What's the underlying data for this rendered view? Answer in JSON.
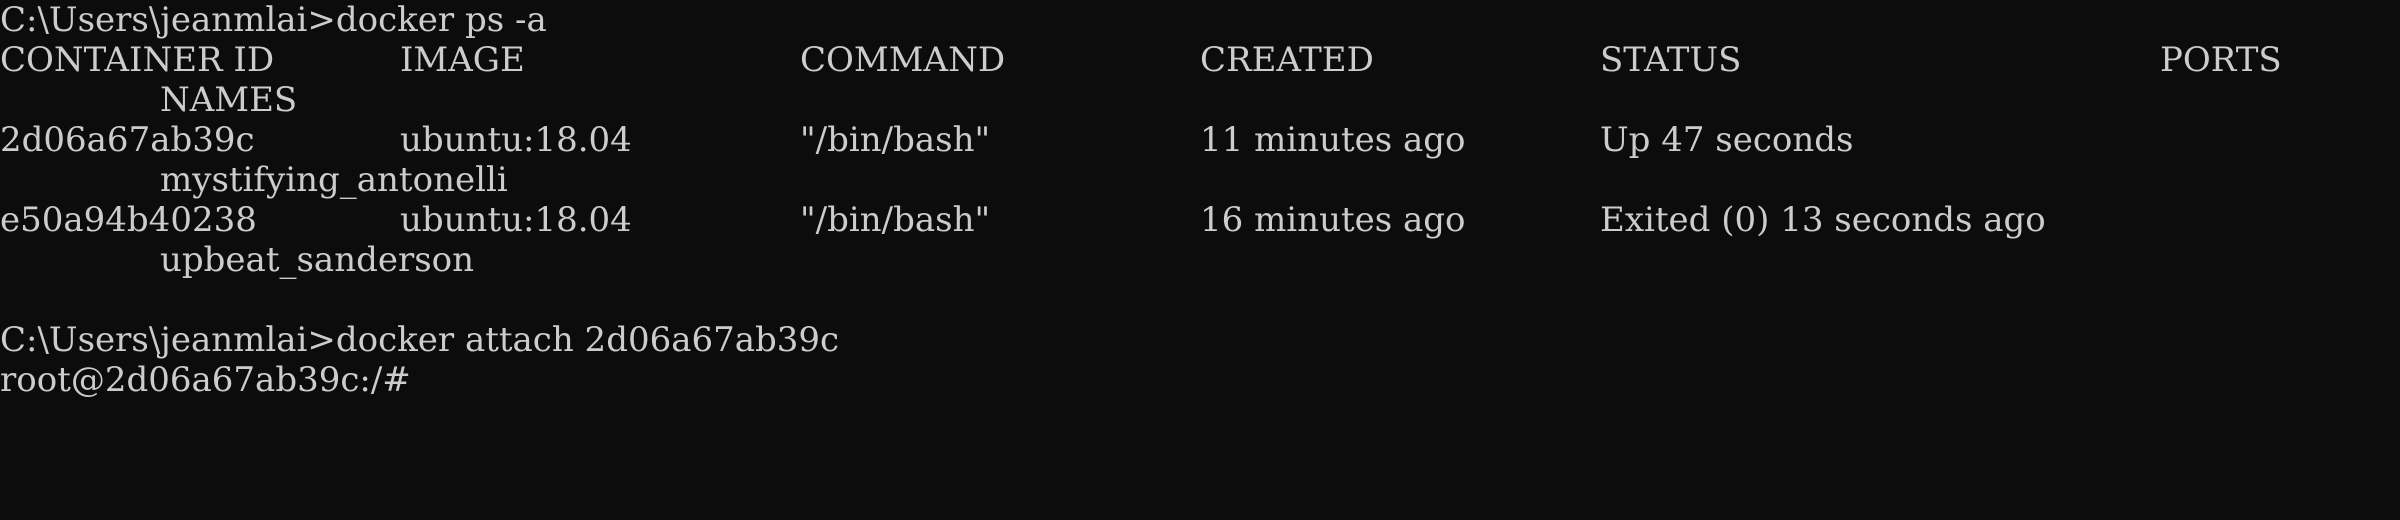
{
  "terminal": {
    "prompt1": "C:\\Users\\jeanmlai>docker ps -a",
    "headers": {
      "container_id": "CONTAINER ID",
      "image": "IMAGE",
      "command": "COMMAND",
      "created": "CREATED",
      "status": "STATUS",
      "ports": "PORTS",
      "names": "NAMES"
    },
    "rows": [
      {
        "container_id": "2d06a67ab39c",
        "image": "ubuntu:18.04",
        "command": "\"/bin/bash\"",
        "created": "11 minutes ago",
        "status": "Up 47 seconds",
        "ports": "",
        "names": "mystifying_antonelli"
      },
      {
        "container_id": "e50a94b40238",
        "image": "ubuntu:18.04",
        "command": "\"/bin/bash\"",
        "created": "16 minutes ago",
        "status": "Exited (0) 13 seconds ago",
        "ports": "",
        "names": "upbeat_sanderson"
      }
    ],
    "prompt2": "C:\\Users\\jeanmlai>docker attach 2d06a67ab39c",
    "prompt3": "root@2d06a67ab39c:/#"
  }
}
